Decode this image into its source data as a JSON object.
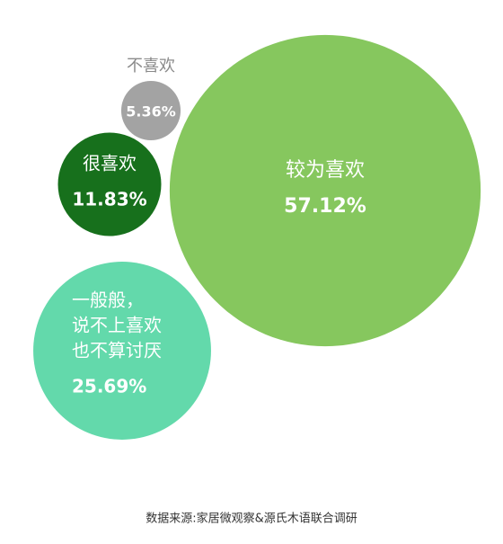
{
  "chart_data": {
    "type": "bubble",
    "categories": [
      [
        "不喜欢"
      ],
      [
        "很喜欢"
      ],
      [
        "较为喜欢"
      ],
      [
        "一般般，",
        "说不上喜欢",
        "也不算讨厌"
      ]
    ],
    "values": [
      5.36,
      11.83,
      57.12,
      25.69
    ],
    "value_labels": [
      "5.36%",
      "11.83%",
      "57.12%",
      "25.69%"
    ],
    "colors": [
      "#a3a3a3",
      "#17701c",
      "#86c75e",
      "#63d9ab"
    ],
    "source": "数据来源:家居微观察&源氏木语联合调研"
  }
}
